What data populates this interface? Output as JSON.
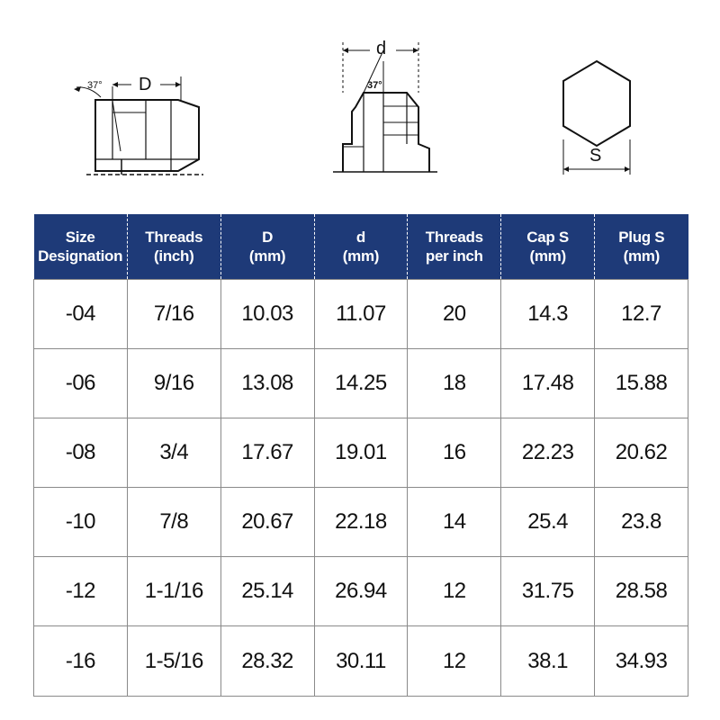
{
  "diagram_labels": {
    "cap_angle": "37°",
    "cap_dimension": "D",
    "plug_dimension": "d",
    "plug_angle": "37°",
    "hex_dimension": "S"
  },
  "table": {
    "headers": [
      [
        "Size",
        "Designation"
      ],
      [
        "Threads",
        "(inch)"
      ],
      [
        "D",
        "(mm)"
      ],
      [
        "d",
        "(mm)"
      ],
      [
        "Threads",
        "per inch"
      ],
      [
        "Cap S",
        "(mm)"
      ],
      [
        "Plug S",
        "(mm)"
      ]
    ],
    "rows": [
      [
        "-04",
        "7/16",
        "10.03",
        "11.07",
        "20",
        "14.3",
        "12.7"
      ],
      [
        "-06",
        "9/16",
        "13.08",
        "14.25",
        "18",
        "17.48",
        "15.88"
      ],
      [
        "-08",
        "3/4",
        "17.67",
        "19.01",
        "16",
        "22.23",
        "20.62"
      ],
      [
        "-10",
        "7/8",
        "20.67",
        "22.18",
        "14",
        "25.4",
        "23.8"
      ],
      [
        "-12",
        "1-1/16",
        "25.14",
        "26.94",
        "12",
        "31.75",
        "28.58"
      ],
      [
        "-16",
        "1-5/16",
        "28.32",
        "30.11",
        "12",
        "38.1",
        "34.93"
      ]
    ]
  },
  "colors": {
    "header_bg": "#1e3a78",
    "header_text": "#ffffff",
    "grid": "#8a8a8a"
  }
}
